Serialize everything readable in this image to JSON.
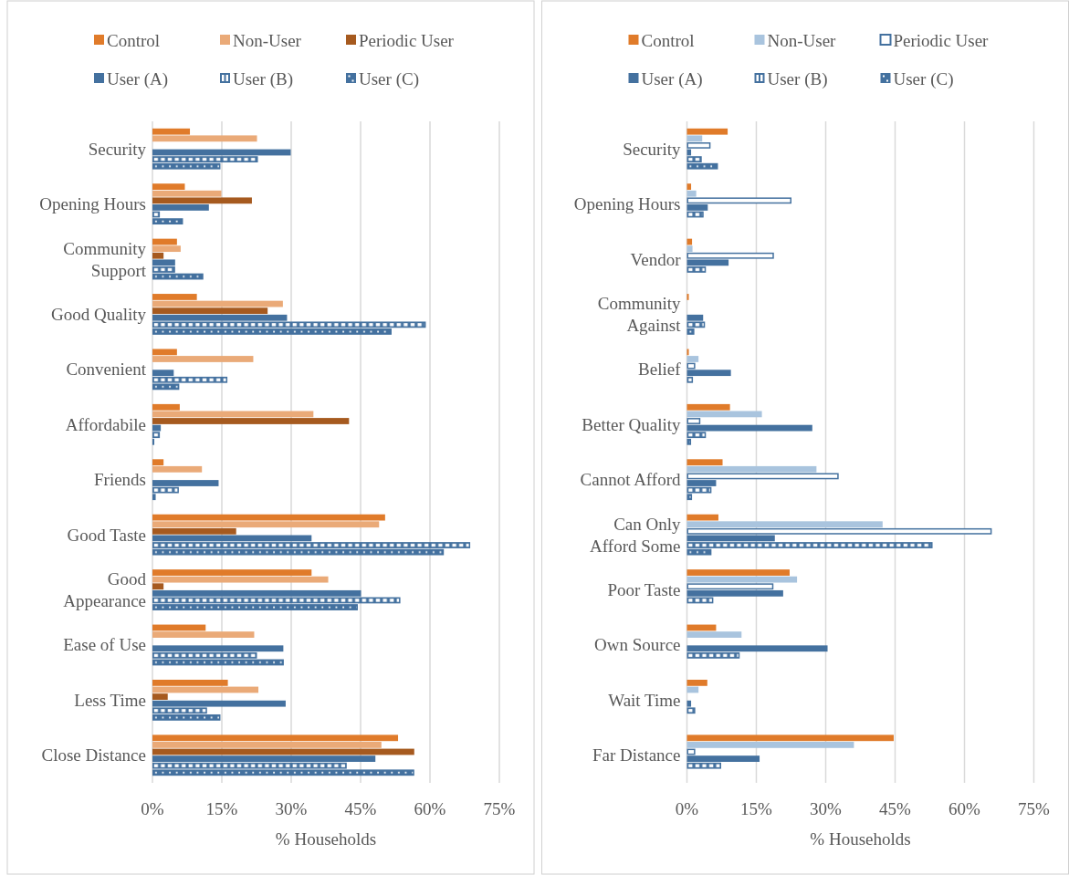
{
  "chart_data": [
    {
      "type": "bar",
      "orientation": "horizontal",
      "xlabel": "% Households",
      "grid": "x",
      "legend": "top",
      "xlim": [
        0,
        75
      ],
      "xticks": [
        {
          "value": 0,
          "label": "0%"
        },
        {
          "value": 15,
          "label": "15%"
        },
        {
          "value": 30,
          "label": "30%"
        },
        {
          "value": 45,
          "label": "45%"
        },
        {
          "value": 60,
          "label": "60%"
        },
        {
          "value": 75,
          "label": "75%"
        }
      ],
      "categories": [
        "Security",
        "Opening Hours",
        "Community Support",
        "Good Quality",
        "Convenient",
        "Affordabile",
        "Friends",
        "Good Taste",
        "Good Appearance",
        "Ease of Use",
        "Less Time",
        "Close Distance"
      ],
      "series": [
        {
          "name": "Control",
          "color": "#e07b2a",
          "values": [
            8.1,
            7.0,
            5.3,
            9.6,
            5.3,
            5.9,
            2.4,
            50.3,
            34.4,
            11.5,
            16.3,
            53.1
          ]
        },
        {
          "name": "Non-User",
          "color": "#eaaa78",
          "values": [
            22.6,
            14.9,
            6.1,
            28.2,
            21.8,
            34.8,
            10.7,
            49.0,
            38.0,
            22.0,
            22.9,
            49.5
          ]
        },
        {
          "name": "Periodic User",
          "color": "#a65a1f",
          "values": [
            null,
            21.5,
            2.4,
            24.9,
            null,
            42.5,
            null,
            18.1,
            2.4,
            null,
            3.3,
            56.6
          ]
        },
        {
          "name": "User (A)",
          "color": "#44719f",
          "values": [
            29.9,
            12.2,
            4.9,
            29.1,
            4.6,
            1.8,
            14.3,
            34.4,
            45.1,
            28.3,
            28.8,
            48.2
          ]
        },
        {
          "name": "User (B)",
          "color": "#44719f",
          "values": [
            22.8,
            1.6,
            4.9,
            59.1,
            16.2,
            1.6,
            5.7,
            68.7,
            53.6,
            22.6,
            11.8,
            42.0
          ]
        },
        {
          "name": "User (C)",
          "color": "#44719f",
          "values": [
            14.7,
            6.6,
            11.0,
            51.7,
            5.8,
            0.4,
            0.7,
            63.0,
            44.4,
            28.4,
            14.7,
            56.6
          ]
        }
      ]
    },
    {
      "type": "bar",
      "orientation": "horizontal",
      "xlabel": "% Households",
      "grid": "x",
      "legend": "top",
      "xlim": [
        0,
        75
      ],
      "xticks": [
        {
          "value": 0,
          "label": "0%"
        },
        {
          "value": 15,
          "label": "15%"
        },
        {
          "value": 30,
          "label": "30%"
        },
        {
          "value": 45,
          "label": "45%"
        },
        {
          "value": 60,
          "label": "60%"
        },
        {
          "value": 75,
          "label": "75%"
        }
      ],
      "categories": [
        "Security",
        "Opening Hours",
        "Vendor",
        "Community Against",
        "Belief",
        "Better Quality",
        "Cannot Afford",
        "Can Only Afford Some",
        "Poor Taste",
        "Own Source",
        "Wait Time",
        "Far Distance"
      ],
      "series": [
        {
          "name": "Control",
          "color": "#e07b2a",
          "values": [
            8.8,
            0.9,
            1.1,
            0.4,
            0.4,
            9.3,
            7.7,
            6.8,
            22.2,
            6.3,
            4.4,
            44.7
          ]
        },
        {
          "name": "Non-User",
          "color": "#a9c4de",
          "values": [
            3.3,
            2.0,
            1.2,
            null,
            2.5,
            16.2,
            28.0,
            42.3,
            23.8,
            11.8,
            2.5,
            36.1
          ]
        },
        {
          "name": "Periodic User",
          "color": "#44719f",
          "values": [
            5.1,
            22.6,
            18.8,
            null,
            1.8,
            2.9,
            32.8,
            65.9,
            18.7,
            null,
            null,
            1.8
          ]
        },
        {
          "name": "User (A)",
          "color": "#44719f",
          "values": [
            0.9,
            4.5,
            9.0,
            3.5,
            9.5,
            27.1,
            6.3,
            19.0,
            20.8,
            30.4,
            0.9,
            15.7
          ]
        },
        {
          "name": "User (B)",
          "color": "#44719f",
          "values": [
            3.2,
            3.6,
            4.1,
            3.9,
            1.3,
            4.1,
            5.3,
            53.1,
            5.7,
            11.4,
            1.8,
            7.4
          ]
        },
        {
          "name": "User (C)",
          "color": "#44719f",
          "values": [
            6.7,
            null,
            null,
            1.6,
            null,
            0.9,
            1.1,
            5.3,
            null,
            null,
            null,
            null
          ]
        }
      ]
    }
  ]
}
